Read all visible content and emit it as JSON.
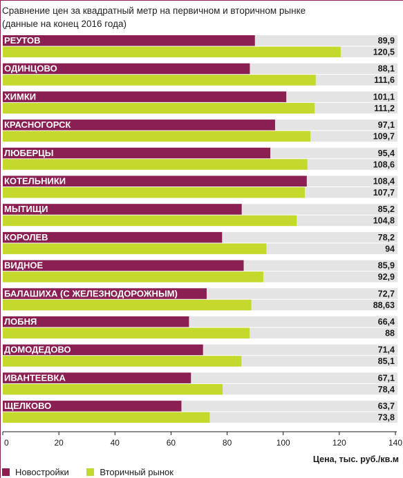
{
  "title": "Сравнение цен за квадратный метр на первичном и вторичном рынке (данные на конец 2016 года)",
  "colors": {
    "primary": "#8a1f51",
    "secondary": "#c5d92d",
    "track": "#e4e4e4",
    "axis": "#1a1a1a"
  },
  "chart_data": {
    "type": "bar",
    "orientation": "horizontal",
    "title": "Сравнение цен за квадратный метр на первичном и вторичном рынке (данные на конец 2016 года)",
    "xlabel": "Цена, тыс. руб./кв.м",
    "xlim": [
      0,
      140
    ],
    "xticks": [
      "0",
      "20",
      "40",
      "60",
      "80",
      "100",
      "120",
      "140"
    ],
    "grid": false,
    "legend_position": "bottom-left",
    "categories": [
      "РЕУТОВ",
      "ОДИНЦОВО",
      "ХИМКИ",
      "КРАСНОГОРСК",
      "ЛЮБЕРЦЫ",
      "КОТЕЛЬНИКИ",
      "МЫТИЩИ",
      "КОРОЛЕВ",
      "ВИДНОЕ",
      "БАЛАШИХА (С ЖЕЛЕЗНОДОРОЖНЫМ)",
      "ЛОБНЯ",
      "ДОМОДЕДОВО",
      "ИВАНТЕЕВКА",
      "ЩЕЛКОВО"
    ],
    "series": [
      {
        "name": "Новостройки",
        "color": "#8a1f51",
        "values": [
          89.9,
          88.1,
          101.1,
          97.1,
          95.4,
          108.4,
          85.2,
          78.2,
          85.9,
          72.7,
          66.4,
          71.4,
          67.1,
          63.7
        ],
        "labels": [
          "89,9",
          "88,1",
          "101,1",
          "97,1",
          "95,4",
          "108,4",
          "85,2",
          "78,2",
          "85,9",
          "72,7",
          "66,4",
          "71,4",
          "67,1",
          "63,7"
        ]
      },
      {
        "name": "Вторичный рынок",
        "color": "#c5d92d",
        "values": [
          120.5,
          111.6,
          111.2,
          109.7,
          108.6,
          107.7,
          104.8,
          94,
          92.9,
          88.63,
          88,
          85.1,
          78.4,
          73.8
        ],
        "labels": [
          "120,5",
          "111,6",
          "111,2",
          "109,7",
          "108,6",
          "107,7",
          "104,8",
          "94",
          "92,9",
          "88,63",
          "88",
          "85,1",
          "78,4",
          "73,8"
        ]
      }
    ]
  }
}
